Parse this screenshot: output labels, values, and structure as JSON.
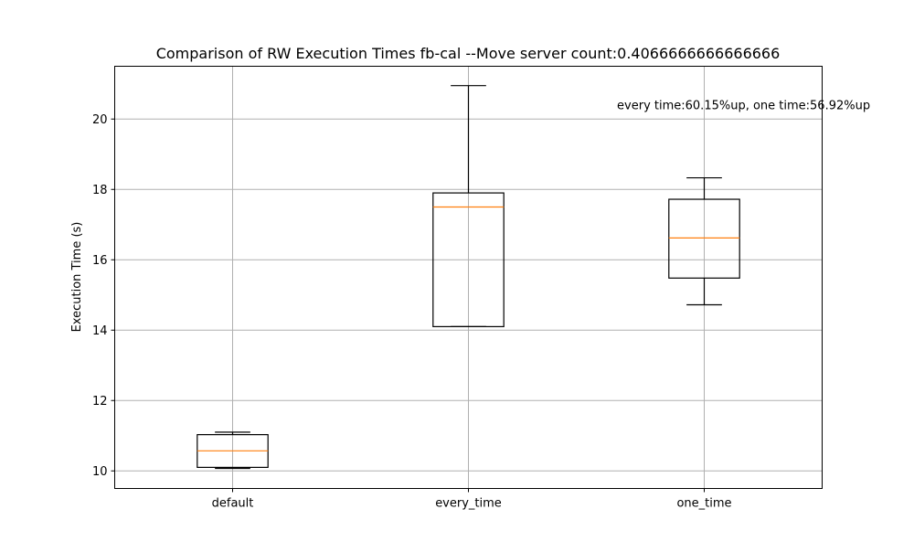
{
  "chart_data": {
    "type": "box",
    "title": "Comparison of RW Execution Times fb-cal --Move server count:0.4066666666666666",
    "xlabel": "",
    "ylabel": "Execution Time (s)",
    "ylim": [
      9.5,
      21.5
    ],
    "yticks": [
      10,
      12,
      14,
      16,
      18,
      20
    ],
    "grid": true,
    "categories": [
      "default",
      "every_time",
      "one_time"
    ],
    "boxes": [
      {
        "label": "default",
        "whisker_low": 10.07,
        "q1": 10.1,
        "median": 10.57,
        "q3": 11.03,
        "whisker_high": 11.1
      },
      {
        "label": "every_time",
        "whisker_low": 14.1,
        "q1": 14.1,
        "median": 17.5,
        "q3": 17.9,
        "whisker_high": 20.95
      },
      {
        "label": "one_time",
        "whisker_low": 14.72,
        "q1": 15.48,
        "median": 16.62,
        "q3": 17.72,
        "whisker_high": 18.33
      }
    ],
    "annotation": {
      "text": "every time:60.15%up, one time:56.92%up",
      "x_category_index": 1.63,
      "y": 20.4
    },
    "colors": {
      "box": "#000000",
      "median": "#ff7f0e",
      "grid": "#b0b0b0",
      "axes": "#000000"
    }
  }
}
